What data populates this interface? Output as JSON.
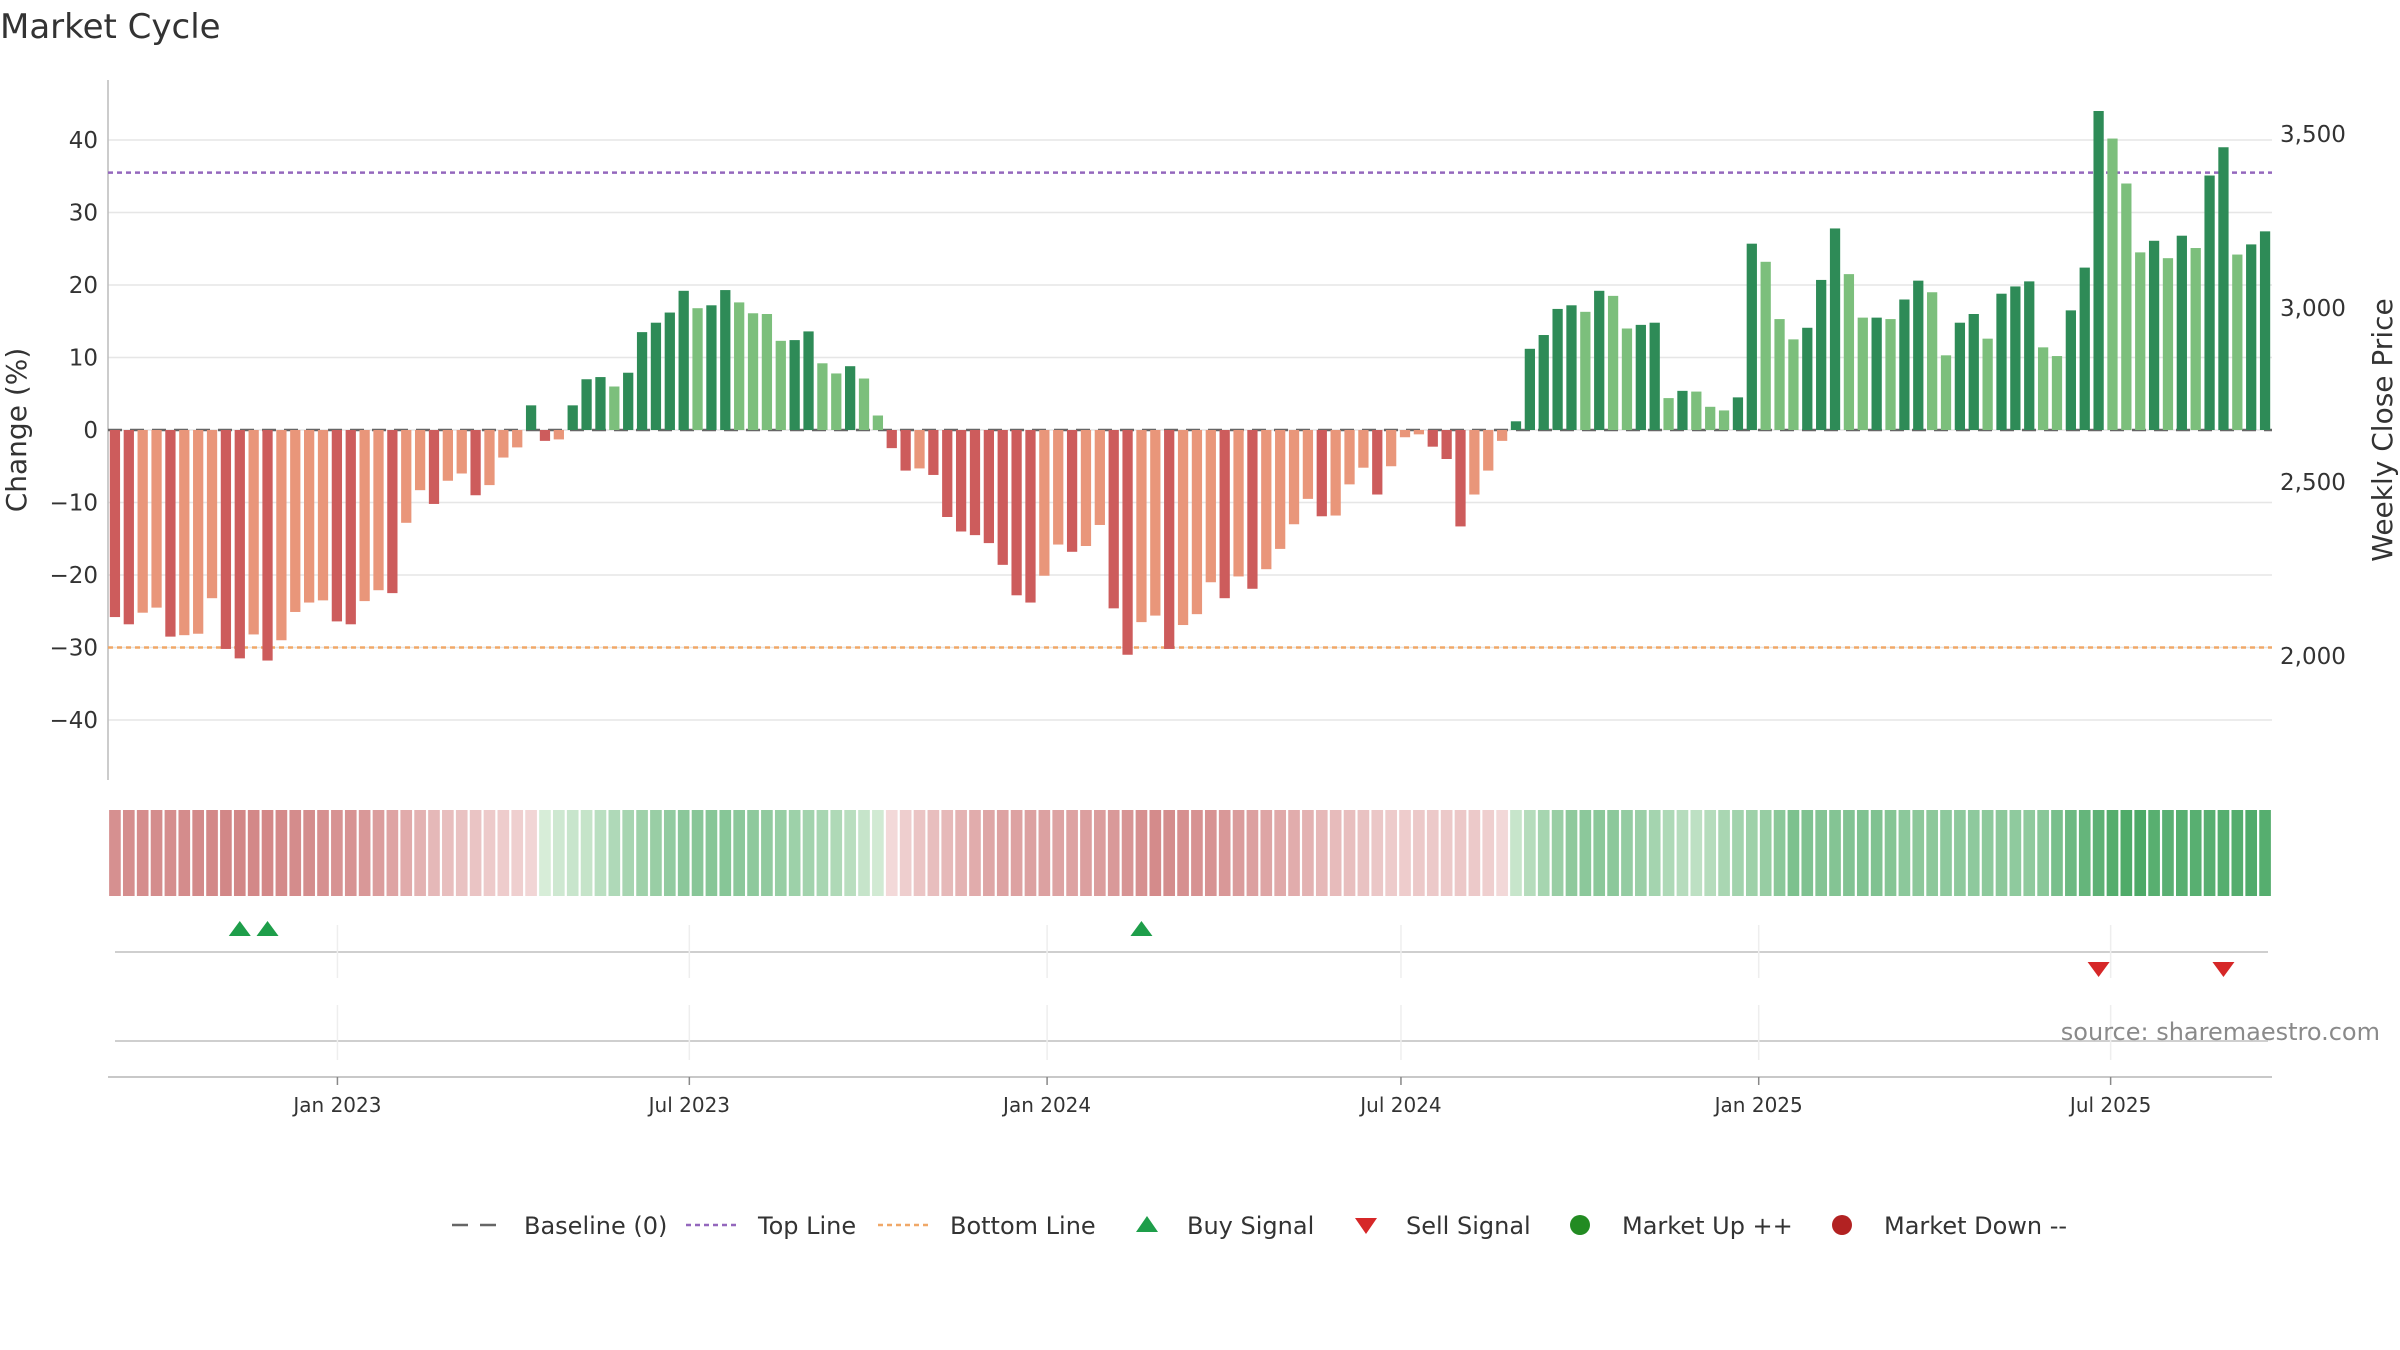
{
  "chart_data": {
    "type": "bar",
    "title": "Market Cycle",
    "ylabel": "Change (%)",
    "y2label": "Weekly Close Price",
    "ylim": [
      -48,
      48
    ],
    "yticks": [
      -40,
      -30,
      -20,
      -10,
      0,
      10,
      20,
      30,
      40
    ],
    "y2lim": [
      1650,
      3650
    ],
    "y2ticks": [
      2000,
      2500,
      3000,
      3500
    ],
    "y2tick_labels": [
      "2,000",
      "2,500",
      "3,000",
      "3,500"
    ],
    "top_line": 35.5,
    "bottom_line": -30,
    "start_date": "2022-09-05",
    "end_date": "2025-09-22",
    "x_tick_labels": [
      "Jan 2023",
      "Jul 2023",
      "Jan 2024",
      "Jul 2024",
      "Jan 2025",
      "Jul 2025"
    ],
    "x_tick_dates": [
      "2023-01-01",
      "2023-07-01",
      "2024-01-01",
      "2024-07-01",
      "2025-01-01",
      "2025-07-01"
    ],
    "values": [
      -25.8,
      -26.8,
      -25.2,
      -24.5,
      -28.5,
      -28.3,
      -28.1,
      -23.2,
      -30.2,
      -31.5,
      -28.2,
      -31.8,
      -29.0,
      -25.1,
      -23.8,
      -23.5,
      -26.4,
      -26.8,
      -23.6,
      -22.1,
      -22.5,
      -12.8,
      -8.3,
      -10.2,
      -7.0,
      -6.0,
      -9.0,
      -7.6,
      -3.8,
      -2.4,
      3.4,
      -1.5,
      -1.3,
      3.4,
      7.0,
      7.3,
      6.0,
      7.9,
      13.5,
      14.8,
      16.2,
      19.2,
      16.8,
      17.2,
      19.3,
      17.6,
      16.1,
      16.0,
      12.3,
      12.4,
      13.6,
      9.2,
      7.8,
      8.8,
      7.1,
      2.0,
      -2.5,
      -5.6,
      -5.3,
      -6.2,
      -12.0,
      -14.0,
      -14.5,
      -15.6,
      -18.6,
      -22.8,
      -23.8,
      -20.1,
      -15.8,
      -16.8,
      -16.0,
      -13.1,
      -24.6,
      -31.0,
      -26.5,
      -25.6,
      -30.2,
      -26.9,
      -25.4,
      -21.0,
      -23.2,
      -20.2,
      -21.9,
      -19.2,
      -16.4,
      -13.0,
      -9.5,
      -11.9,
      -11.8,
      -7.5,
      -5.2,
      -8.9,
      -5.0,
      -1.0,
      -0.6,
      -2.3,
      -4.0,
      -13.3,
      -8.9,
      -5.6,
      -1.5,
      1.2,
      11.2,
      13.1,
      16.7,
      17.2,
      16.3,
      19.2,
      18.5,
      14.0,
      14.5,
      14.8,
      4.4,
      5.4,
      5.3,
      3.2,
      2.7,
      4.5,
      25.7,
      23.2,
      15.3,
      12.5,
      14.1,
      20.7,
      27.8,
      21.5,
      15.5,
      15.5,
      15.3,
      18.0,
      20.6,
      19.0,
      10.3,
      14.8,
      16.0,
      12.6,
      18.8,
      19.8,
      20.5,
      11.4,
      10.2,
      16.5,
      22.4,
      44.0,
      40.2,
      34.0,
      24.5,
      26.1,
      23.7,
      26.8,
      25.1,
      35.1,
      39.0,
      24.2,
      25.6,
      27.4
    ],
    "buy_signals": [
      9,
      11,
      74
    ],
    "sell_signals": [
      143,
      152
    ],
    "colors": {
      "up_strong": "#2e8b57",
      "up_weak": "#7cbf7c",
      "down_strong": "#cd5c5c",
      "down_weak": "#e9967a",
      "top_line": "#9467bd",
      "bottom_line": "#f0a868",
      "buy": "#1e9e4a",
      "sell": "#d62728",
      "market_up": "#228b22",
      "market_down": "#b22222",
      "baseline": "#666666"
    },
    "legend": {
      "position": "bottom-center",
      "items": [
        {
          "label": "Baseline (0)",
          "marker": "dash-line"
        },
        {
          "label": "Top Line",
          "marker": "dotted-purple"
        },
        {
          "label": "Bottom Line",
          "marker": "dotted-orange"
        },
        {
          "label": "Buy Signal",
          "marker": "triangle-up"
        },
        {
          "label": "Sell Signal",
          "marker": "triangle-down"
        },
        {
          "label": "Market Up ++",
          "marker": "dot-green"
        },
        {
          "label": "Market Down --",
          "marker": "dot-red"
        }
      ]
    },
    "source": "source: sharemaestro.com"
  }
}
